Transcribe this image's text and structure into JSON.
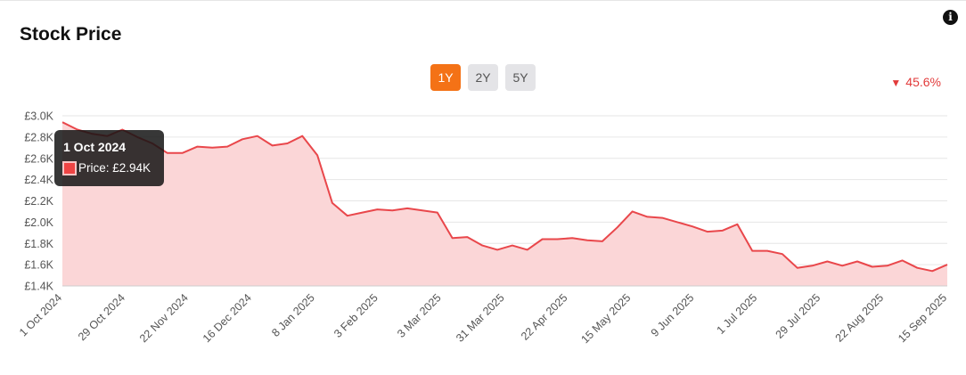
{
  "header": {
    "title": "Stock Price",
    "info_icon": "info-icon"
  },
  "range_buttons": [
    {
      "label": "1Y",
      "active": true
    },
    {
      "label": "2Y",
      "active": false
    },
    {
      "label": "5Y",
      "active": false
    }
  ],
  "change": {
    "direction_icon": "down-triangle-icon",
    "symbol": "▼",
    "value": "45.6%",
    "color": "#e23b3b"
  },
  "tooltip": {
    "date": "1 Oct 2024",
    "text": "Price: £2.94K"
  },
  "colors": {
    "line": "#e9474b",
    "area_fill": "#fbd6d7",
    "active_button": "#f47216",
    "grid": "#e6e6e6"
  },
  "chart_data": {
    "type": "area",
    "x_tick_labels": [
      "1 Oct 2024",
      "29 Oct 2024",
      "22 Nov 2024",
      "16 Dec 2024",
      "8 Jan 2025",
      "3 Feb 2025",
      "3 Mar 2025",
      "31 Mar 2025",
      "22 Apr 2025",
      "15 May 2025",
      "9 Jun 2025",
      "1 Jul 2025",
      "29 Jul 2025",
      "22 Aug 2025",
      "15 Sep 2025"
    ],
    "y_tick_labels": [
      "£1.4K",
      "£1.6K",
      "£1.8K",
      "£2.0K",
      "£2.2K",
      "£2.4K",
      "£2.6K",
      "£2.8K",
      "£3.0K"
    ],
    "y_ticks": [
      1400,
      1600,
      1800,
      2000,
      2200,
      2400,
      2600,
      2800,
      3000
    ],
    "ylim": [
      1400,
      3000
    ],
    "grid": true,
    "series": [
      {
        "values": [
          2940,
          2870,
          2830,
          2810,
          2870,
          2800,
          2740,
          2650,
          2650,
          2710,
          2700,
          2710,
          2780,
          2810,
          2720,
          2740,
          2810,
          2630,
          2180,
          2060,
          2090,
          2120,
          2110,
          2130,
          2110,
          2090,
          1850,
          1860,
          1780,
          1740,
          1780,
          1740,
          1840,
          1840,
          1850,
          1830,
          1820,
          1950,
          2100,
          2050,
          2040,
          2000,
          1960,
          1910,
          1920,
          1980,
          1730,
          1730,
          1700,
          1570,
          1590,
          1630,
          1590,
          1630,
          1580,
          1590,
          1640,
          1570,
          1540,
          1600
        ]
      }
    ]
  }
}
